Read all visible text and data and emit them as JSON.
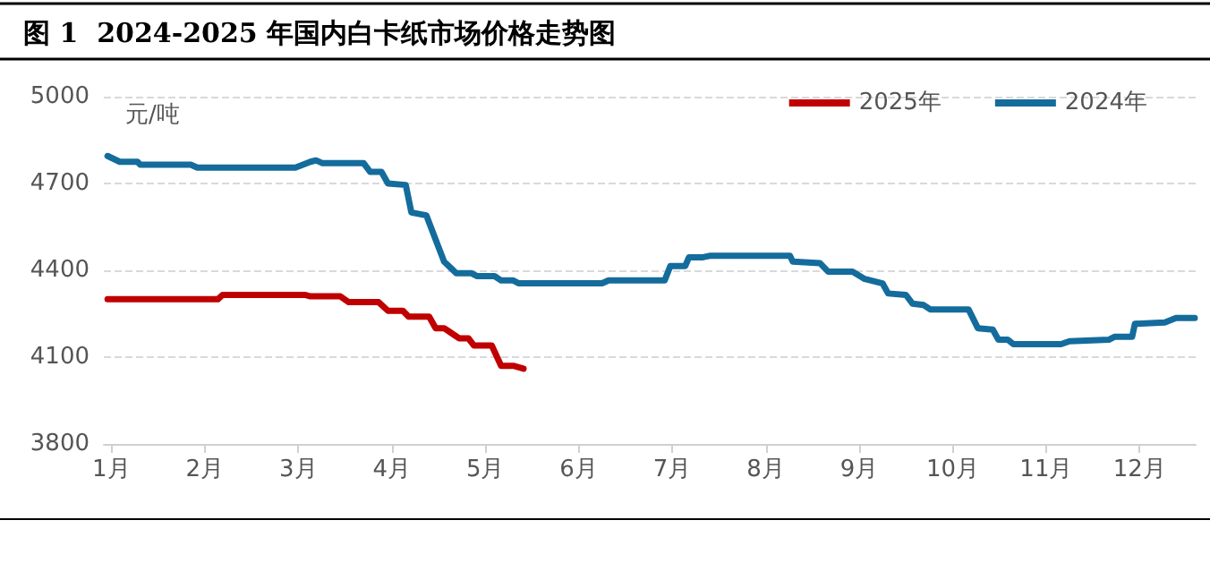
{
  "chart_data": {
    "type": "line",
    "title": "图 1  2024-2025 年国内白卡纸市场价格走势图",
    "ylabel": "元/吨",
    "xlim": [
      0.92,
      12.6
    ],
    "xticks": [
      {
        "value": 1,
        "label": "1月"
      },
      {
        "value": 2,
        "label": "2月"
      },
      {
        "value": 3,
        "label": "3月"
      },
      {
        "value": 4,
        "label": "4月"
      },
      {
        "value": 5,
        "label": "5月"
      },
      {
        "value": 6,
        "label": "6月"
      },
      {
        "value": 7,
        "label": "7月"
      },
      {
        "value": 8,
        "label": "8月"
      },
      {
        "value": 9,
        "label": "9月"
      },
      {
        "value": 10,
        "label": "10月"
      },
      {
        "value": 11,
        "label": "11月"
      },
      {
        "value": 12,
        "label": "12月"
      }
    ],
    "ylim": [
      3800,
      5000
    ],
    "yticks": [
      3800,
      4100,
      4400,
      4700,
      5000
    ],
    "grid": "y",
    "legend": "top right",
    "marker": "none",
    "line_style": "solid",
    "series": [
      {
        "name": "2025年",
        "color": "#c00000",
        "x": [
          0.96,
          2.14,
          2.19,
          3.07,
          3.13,
          3.45,
          3.54,
          3.86,
          3.96,
          4.12,
          4.18,
          4.4,
          4.47,
          4.56,
          4.63,
          4.72,
          4.82,
          4.88,
          5.07,
          5.17,
          5.3,
          5.41
        ],
        "values": [
          4300,
          4300,
          4315,
          4315,
          4310,
          4310,
          4290,
          4290,
          4260,
          4260,
          4240,
          4240,
          4200,
          4200,
          4185,
          4165,
          4165,
          4140,
          4140,
          4070,
          4070,
          4060
        ]
      },
      {
        "name": "2024年",
        "color": "#146c9c",
        "x": [
          0.96,
          1.09,
          1.28,
          1.31,
          1.85,
          1.92,
          2.97,
          3.13,
          3.19,
          3.26,
          3.7,
          3.77,
          3.89,
          3.96,
          4.15,
          4.21,
          4.37,
          4.56,
          4.69,
          4.85,
          4.91,
          5.1,
          5.17,
          5.3,
          5.36,
          6.25,
          6.32,
          6.92,
          6.98,
          7.14,
          7.18,
          7.33,
          7.4,
          8.26,
          8.29,
          8.58,
          8.67,
          8.93,
          9.06,
          9.25,
          9.31,
          9.5,
          9.57,
          9.69,
          9.76,
          10.17,
          10.27,
          10.43,
          10.49,
          10.59,
          10.65,
          11.16,
          11.25,
          11.67,
          11.73,
          11.92,
          11.95,
          12.27,
          12.39,
          12.59
        ],
        "values": [
          4795,
          4775,
          4775,
          4765,
          4765,
          4755,
          4755,
          4775,
          4780,
          4770,
          4770,
          4740,
          4740,
          4700,
          4695,
          4600,
          4590,
          4430,
          4390,
          4390,
          4380,
          4380,
          4365,
          4365,
          4355,
          4355,
          4365,
          4365,
          4415,
          4415,
          4445,
          4445,
          4450,
          4450,
          4430,
          4425,
          4395,
          4395,
          4370,
          4355,
          4320,
          4315,
          4285,
          4280,
          4265,
          4265,
          4200,
          4195,
          4160,
          4160,
          4145,
          4145,
          4155,
          4160,
          4170,
          4170,
          4215,
          4220,
          4235,
          4235
        ]
      }
    ]
  }
}
